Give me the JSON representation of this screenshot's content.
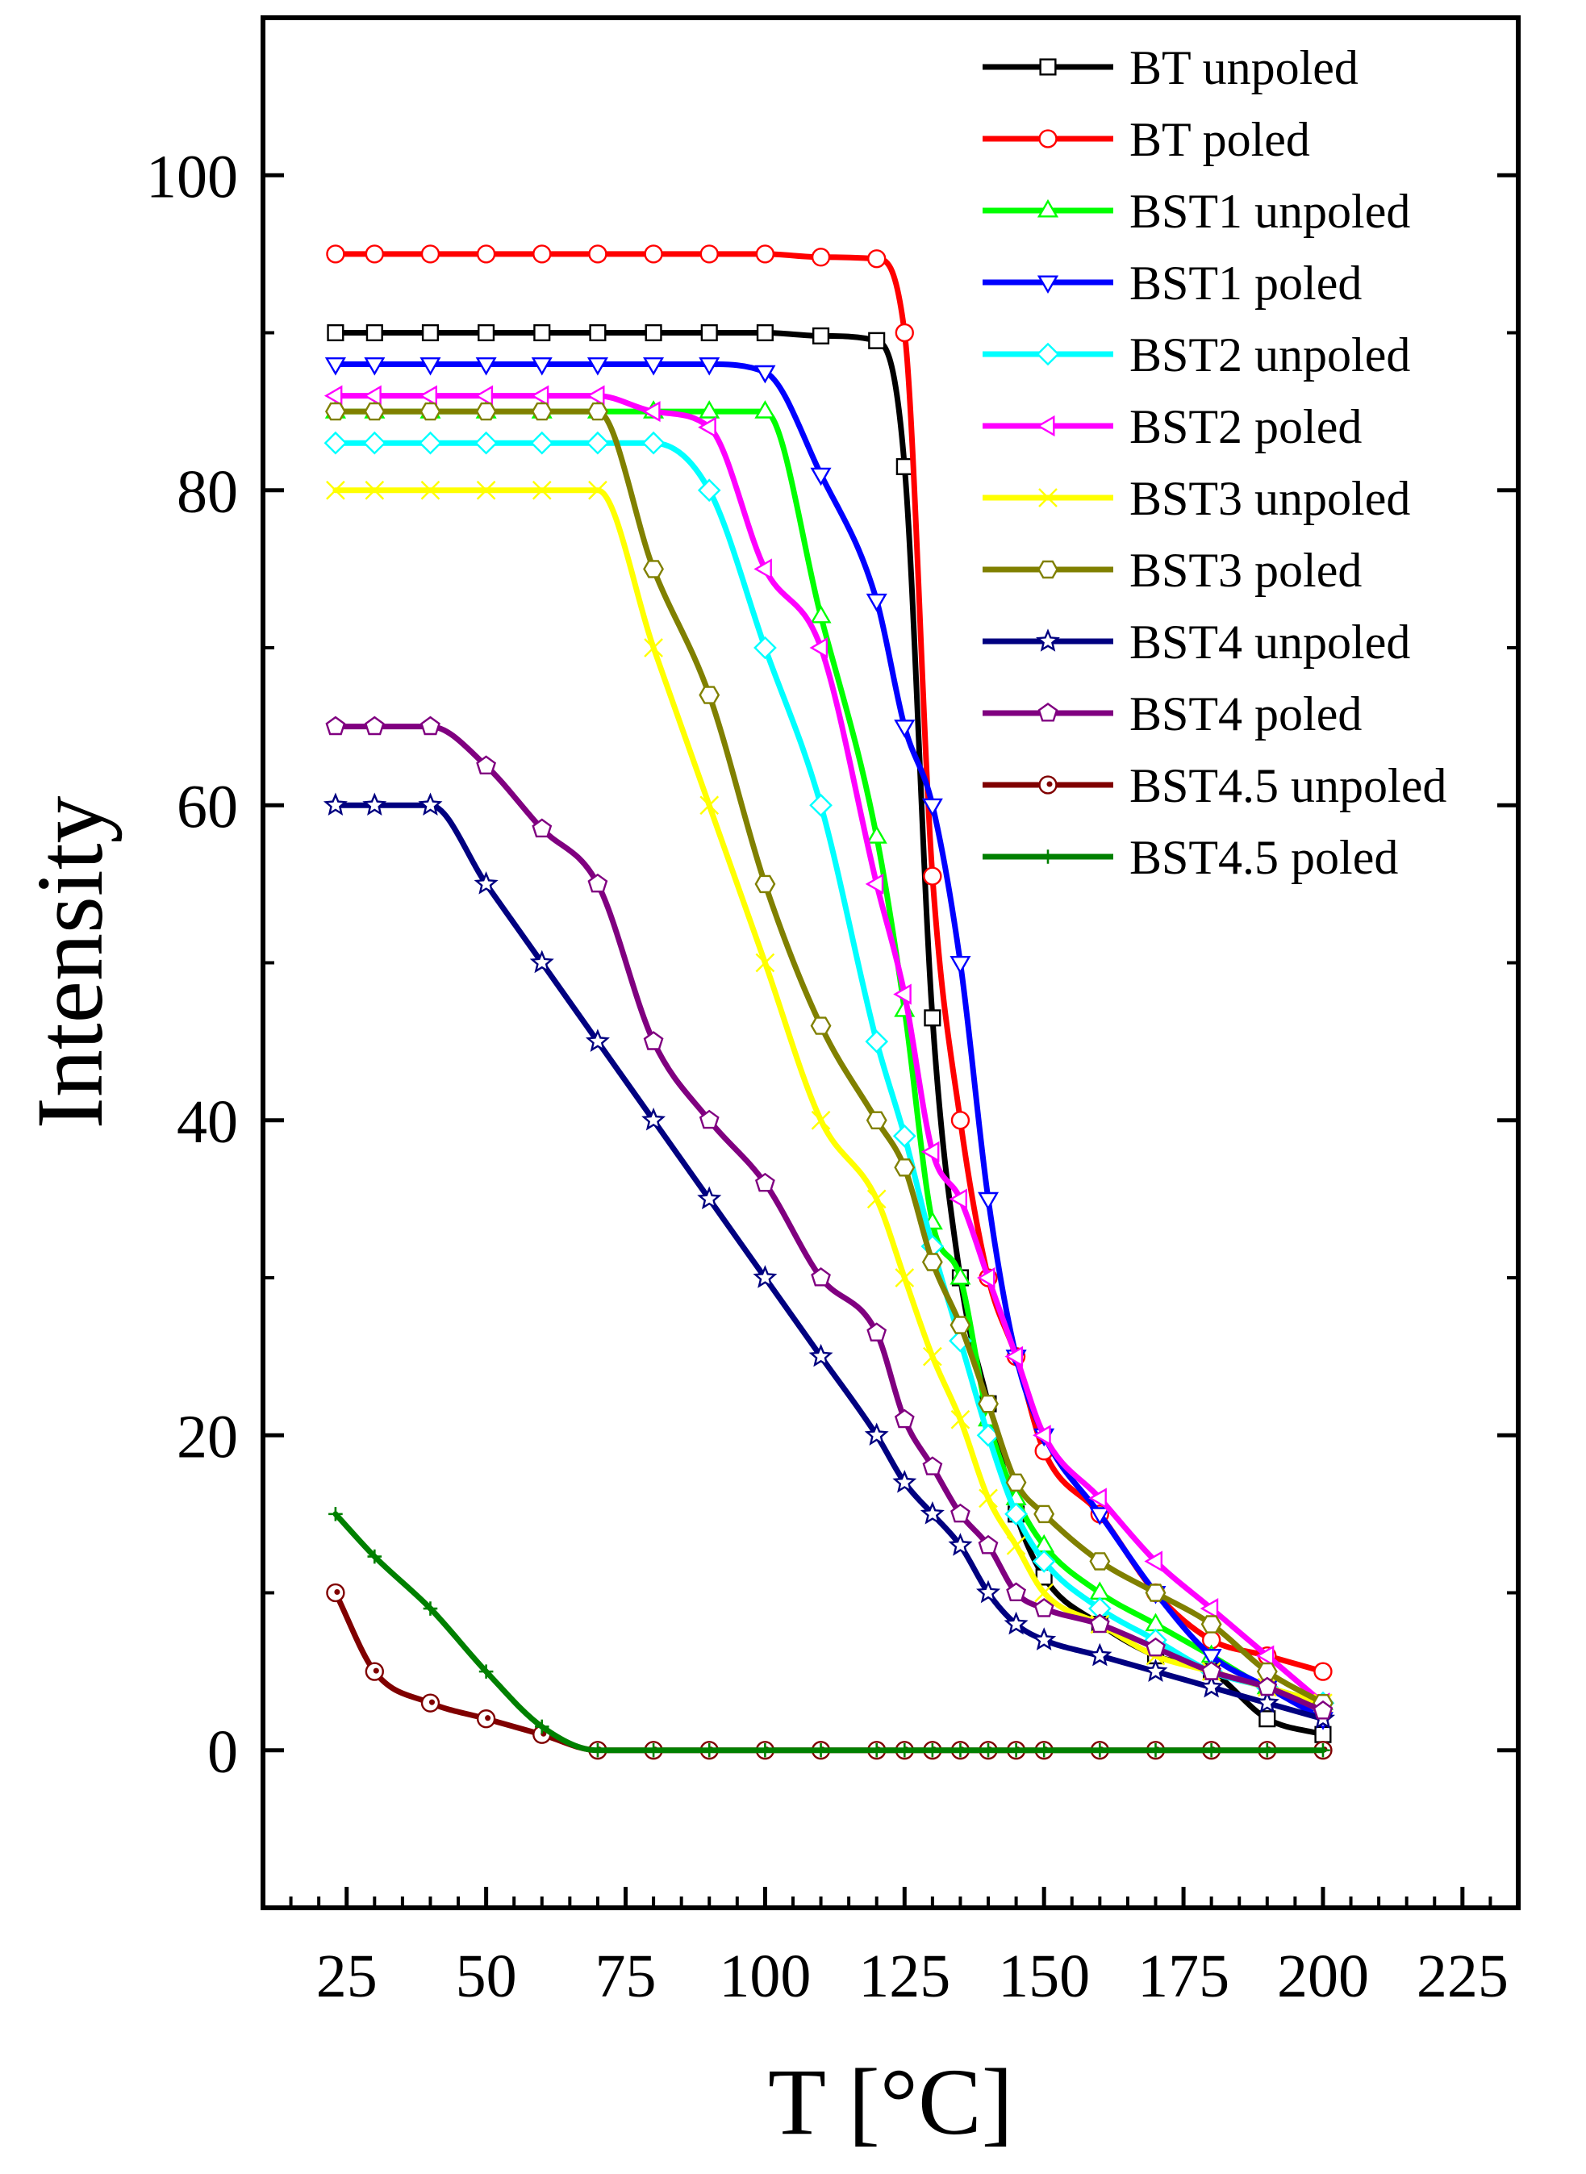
{
  "chart_data": {
    "type": "line",
    "title": "",
    "xlabel": "T [°C]",
    "ylabel": "Intensity",
    "xlim": [
      10,
      235
    ],
    "ylim": [
      -10,
      110
    ],
    "x_ticks": [
      25,
      50,
      75,
      100,
      125,
      150,
      175,
      200,
      225
    ],
    "y_ticks": [
      0,
      20,
      40,
      60,
      80,
      100
    ],
    "grid": false,
    "legend_position": "top-right",
    "series": [
      {
        "name": "BT unpoled",
        "color": "#000000",
        "marker": "square",
        "x": [
          23,
          30,
          40,
          50,
          60,
          70,
          80,
          90,
          100,
          110,
          120,
          125,
          130,
          135,
          140,
          145,
          150,
          160,
          170,
          180,
          190,
          200
        ],
        "y": [
          90,
          90,
          90,
          90,
          90,
          90,
          90,
          90,
          90,
          89.8,
          89.5,
          81.5,
          46.5,
          30,
          22,
          15,
          11,
          8,
          6,
          5,
          2,
          1
        ]
      },
      {
        "name": "BT poled",
        "color": "#ff0000",
        "marker": "circle",
        "x": [
          23,
          30,
          40,
          50,
          60,
          70,
          80,
          90,
          100,
          110,
          120,
          125,
          130,
          135,
          140,
          145,
          150,
          160,
          170,
          180,
          190,
          200
        ],
        "y": [
          95,
          95,
          95,
          95,
          95,
          95,
          95,
          95,
          95,
          94.8,
          94.7,
          90,
          55.5,
          40,
          30,
          25,
          19,
          15,
          10,
          7,
          6,
          5
        ]
      },
      {
        "name": "BST1 unpoled",
        "color": "#00ff00",
        "marker": "triangle-up",
        "x": [
          23,
          30,
          40,
          50,
          60,
          70,
          80,
          90,
          100,
          110,
          120,
          125,
          130,
          135,
          140,
          145,
          150,
          160,
          170,
          180,
          190,
          200
        ],
        "y": [
          85,
          85,
          85,
          85,
          85,
          85,
          85,
          85,
          85,
          72,
          58,
          47,
          33.5,
          30,
          21,
          16,
          13,
          10,
          8,
          6,
          4,
          3
        ]
      },
      {
        "name": "BST1 poled",
        "color": "#0000ff",
        "marker": "triangle-down",
        "x": [
          23,
          30,
          40,
          50,
          60,
          70,
          80,
          90,
          100,
          110,
          120,
          125,
          130,
          135,
          140,
          145,
          150,
          160,
          170,
          180,
          190,
          200
        ],
        "y": [
          88,
          88,
          88,
          88,
          88,
          88,
          88,
          88,
          87.5,
          81,
          73,
          65,
          60,
          50,
          35,
          25,
          20,
          15,
          10,
          6,
          4,
          2
        ]
      },
      {
        "name": "BST2 unpoled",
        "color": "#00ffff",
        "marker": "diamond",
        "x": [
          23,
          30,
          40,
          50,
          60,
          70,
          80,
          90,
          100,
          110,
          120,
          125,
          130,
          135,
          140,
          145,
          150,
          160,
          170,
          180,
          190,
          200
        ],
        "y": [
          83,
          83,
          83,
          83,
          83,
          83,
          83,
          80,
          70,
          60,
          45,
          39,
          32,
          26,
          20,
          15,
          12,
          9,
          7,
          5,
          4,
          3
        ]
      },
      {
        "name": "BST2 poled",
        "color": "#ff00ff",
        "marker": "triangle-left",
        "x": [
          23,
          30,
          40,
          50,
          60,
          70,
          80,
          90,
          100,
          110,
          120,
          125,
          130,
          135,
          140,
          145,
          150,
          160,
          170,
          180,
          190,
          200
        ],
        "y": [
          86,
          86,
          86,
          86,
          86,
          86,
          85,
          84,
          75,
          70,
          55,
          48,
          38,
          35,
          30,
          25,
          20,
          16,
          12,
          9,
          6,
          3
        ]
      },
      {
        "name": "BST3 unpoled",
        "color": "#ffff00",
        "marker": "x",
        "x": [
          23,
          30,
          40,
          50,
          60,
          70,
          80,
          90,
          100,
          110,
          120,
          125,
          130,
          135,
          140,
          145,
          150,
          160,
          170,
          180,
          190,
          200
        ],
        "y": [
          80,
          80,
          80,
          80,
          80,
          80,
          70,
          60,
          50,
          40,
          35,
          30,
          25,
          21,
          16,
          13,
          10,
          8,
          6,
          5,
          4,
          3
        ]
      },
      {
        "name": "BST3 poled",
        "color": "#808000",
        "marker": "hexagon",
        "x": [
          23,
          30,
          40,
          50,
          60,
          70,
          80,
          90,
          100,
          110,
          120,
          125,
          130,
          135,
          140,
          145,
          150,
          160,
          170,
          180,
          190,
          200
        ],
        "y": [
          85,
          85,
          85,
          85,
          85,
          85,
          75,
          67,
          55,
          46,
          40,
          37,
          31,
          27,
          22,
          17,
          15,
          12,
          10,
          8,
          5,
          3
        ]
      },
      {
        "name": "BST4 unpoled",
        "color": "#000080",
        "marker": "star",
        "x": [
          23,
          30,
          40,
          50,
          60,
          70,
          80,
          90,
          100,
          110,
          120,
          125,
          130,
          135,
          140,
          145,
          150,
          160,
          170,
          180,
          190,
          200
        ],
        "y": [
          60,
          60,
          60,
          55,
          50,
          45,
          40,
          35,
          30,
          25,
          20,
          17,
          15,
          13,
          10,
          8,
          7,
          6,
          5,
          4,
          3,
          2
        ]
      },
      {
        "name": "BST4 poled",
        "color": "#800080",
        "marker": "pentagon",
        "x": [
          23,
          30,
          40,
          50,
          60,
          70,
          80,
          90,
          100,
          110,
          120,
          125,
          130,
          135,
          140,
          145,
          150,
          160,
          170,
          180,
          190,
          200
        ],
        "y": [
          65,
          65,
          65,
          62.5,
          58.5,
          55,
          45,
          40,
          36,
          30,
          26.5,
          21,
          18,
          15,
          13,
          10,
          9,
          8,
          6.5,
          5,
          4,
          2.5
        ]
      },
      {
        "name": "BST4.5 unpoled",
        "color": "#800000",
        "marker": "circle-dot",
        "x": [
          23,
          30,
          40,
          50,
          60,
          70,
          80,
          90,
          100,
          110,
          120,
          125,
          130,
          135,
          140,
          145,
          150,
          160,
          170,
          180,
          190,
          200
        ],
        "y": [
          10,
          5,
          3,
          2,
          1,
          0,
          0,
          0,
          0,
          0,
          0,
          0,
          0,
          0,
          0,
          0,
          0,
          0,
          0,
          0,
          0,
          0
        ]
      },
      {
        "name": "BST4.5 poled",
        "color": "#008000",
        "marker": "plus",
        "x": [
          23,
          30,
          40,
          50,
          60,
          70,
          80,
          90,
          100,
          110,
          120,
          125,
          130,
          135,
          140,
          145,
          150,
          160,
          170,
          180,
          190,
          200
        ],
        "y": [
          15,
          12.3,
          9,
          5,
          1.5,
          0,
          0,
          0,
          0,
          0,
          0,
          0,
          0,
          0,
          0,
          0,
          0,
          0,
          0,
          0,
          0,
          0
        ]
      }
    ]
  }
}
